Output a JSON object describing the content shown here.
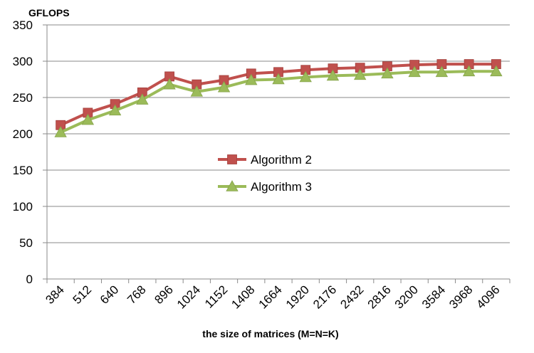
{
  "chart_data": {
    "type": "line",
    "title": "",
    "ylabel": "GFLOPS",
    "xlabel": "the size of matrices (M=N=K)",
    "ylim": [
      0,
      350
    ],
    "yticks": [
      0,
      50,
      100,
      150,
      200,
      250,
      300,
      350
    ],
    "grid": true,
    "legend_position": "center",
    "categories": [
      "384",
      "512",
      "640",
      "768",
      "896",
      "1024",
      "1152",
      "1408",
      "1664",
      "1920",
      "2176",
      "2432",
      "2816",
      "3200",
      "3584",
      "3968",
      "4096"
    ],
    "series": [
      {
        "name": "Algorithm 2",
        "color": "#c0504d",
        "marker": "square",
        "values": [
          212,
          229,
          241,
          257,
          279,
          268,
          274,
          283,
          285,
          288,
          290,
          291,
          293,
          295,
          296,
          296,
          296
        ]
      },
      {
        "name": "Algorithm 3",
        "color": "#9bbb59",
        "marker": "triangle",
        "values": [
          202,
          219,
          232,
          247,
          268,
          258,
          264,
          274,
          275,
          278,
          280,
          281,
          283,
          285,
          285,
          286,
          286
        ]
      }
    ]
  }
}
